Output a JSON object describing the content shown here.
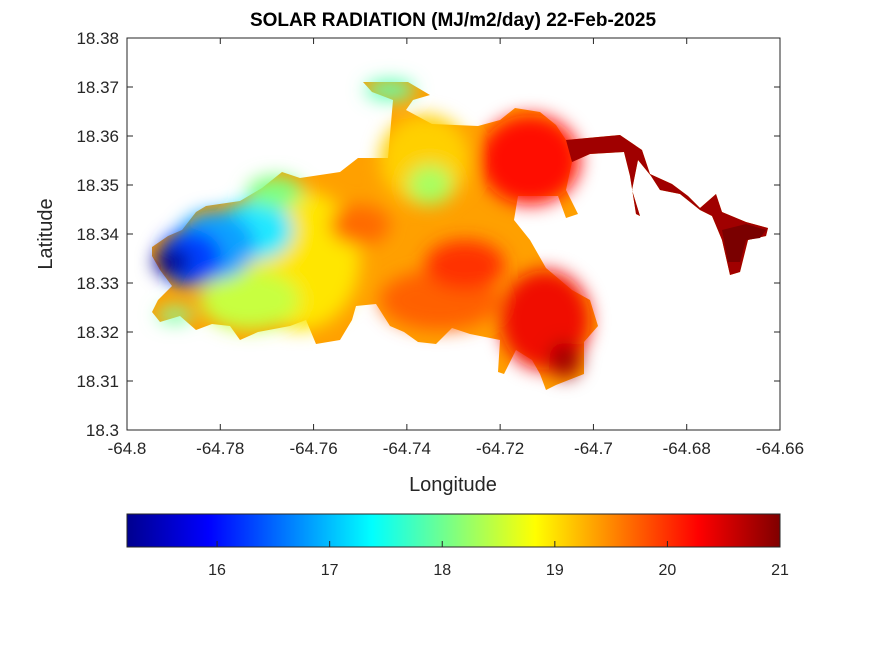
{
  "chart_data": {
    "type": "heatmap",
    "title": "SOLAR RADIATION (MJ/m2/day) 22-Feb-2025",
    "xlabel": "Longitude",
    "ylabel": "Latitude",
    "xlim": [
      -64.8,
      -64.66
    ],
    "ylim": [
      18.3,
      18.38
    ],
    "x_ticks": [
      "-64.8",
      "-64.78",
      "-64.76",
      "-64.74",
      "-64.72",
      "-64.7",
      "-64.68",
      "-64.66"
    ],
    "y_ticks": [
      "18.3",
      "18.31",
      "18.32",
      "18.33",
      "18.34",
      "18.35",
      "18.36",
      "18.37",
      "18.38"
    ],
    "colormap": "jet",
    "colorbar": {
      "range": [
        15.2,
        21
      ],
      "ticks": [
        "16",
        "17",
        "18",
        "19",
        "20",
        "21"
      ],
      "placement": "bottom"
    },
    "approximate_field": [
      {
        "lon": -64.792,
        "lat": 18.336,
        "value": 15.3
      },
      {
        "lon": -64.786,
        "lat": 18.339,
        "value": 15.8
      },
      {
        "lon": -64.78,
        "lat": 18.34,
        "value": 16.6
      },
      {
        "lon": -64.774,
        "lat": 18.341,
        "value": 17.3
      },
      {
        "lon": -64.79,
        "lat": 18.323,
        "value": 17.6
      },
      {
        "lon": -64.772,
        "lat": 18.328,
        "value": 18.2
      },
      {
        "lon": -64.768,
        "lat": 18.344,
        "value": 18.0
      },
      {
        "lon": -64.762,
        "lat": 18.336,
        "value": 18.9
      },
      {
        "lon": -64.745,
        "lat": 18.368,
        "value": 18.2
      },
      {
        "lon": -64.735,
        "lat": 18.349,
        "value": 18.4
      },
      {
        "lon": -64.748,
        "lat": 18.342,
        "value": 19.9
      },
      {
        "lon": -64.728,
        "lat": 18.333,
        "value": 20.3
      },
      {
        "lon": -64.712,
        "lat": 18.355,
        "value": 20.5
      },
      {
        "lon": -64.706,
        "lat": 18.313,
        "value": 20.8
      },
      {
        "lon": -64.672,
        "lat": 18.339,
        "value": 20.9
      },
      {
        "lon": -64.69,
        "lat": 18.358,
        "value": 20.8
      }
    ]
  }
}
